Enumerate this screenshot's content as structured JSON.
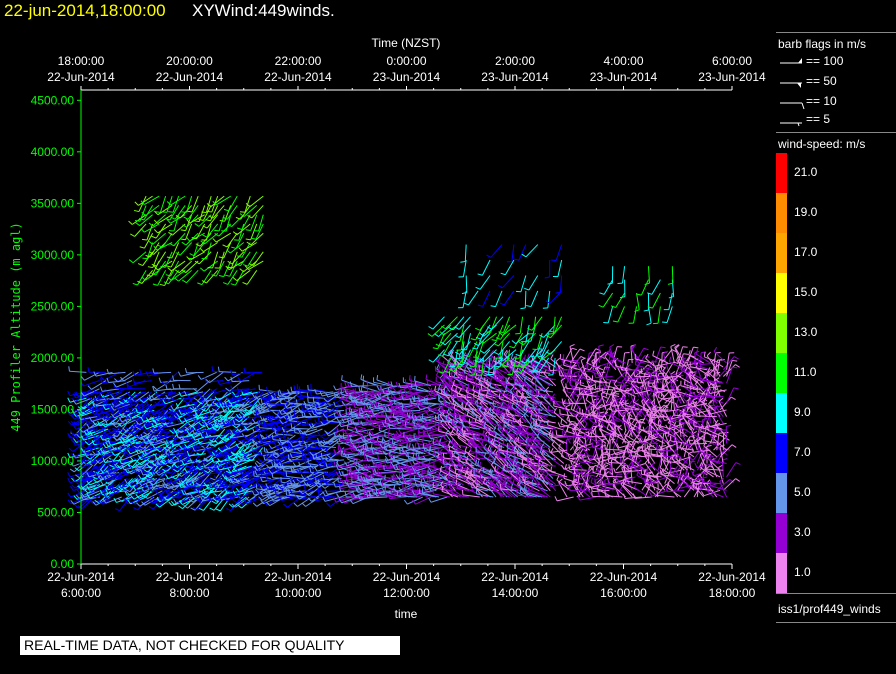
{
  "header": {
    "date_time": "22-jun-2014,18:00:00",
    "plot_name": "XYWind:449winds."
  },
  "colors": {
    "background": "#000000",
    "axis": "#ffffff",
    "y_axis": "#00ff00",
    "date_title": "#ffff00"
  },
  "legend_barbs": {
    "title": "barb flags in m/s",
    "items": [
      {
        "label": "== 100"
      },
      {
        "label": "== 50"
      },
      {
        "label": "== 10"
      },
      {
        "label": "== 5"
      }
    ]
  },
  "legend_speed": {
    "title": "wind-speed: m/s",
    "items": [
      {
        "label": "21.0",
        "color": "#ff0000"
      },
      {
        "label": "19.0",
        "color": "#ff8c00"
      },
      {
        "label": "17.0",
        "color": "#ffa500"
      },
      {
        "label": "15.0",
        "color": "#ffff00"
      },
      {
        "label": "13.0",
        "color": "#7fff00"
      },
      {
        "label": "11.0",
        "color": "#00ff00"
      },
      {
        "label": "9.0",
        "color": "#00ffff"
      },
      {
        "label": "7.0",
        "color": "#0000ff"
      },
      {
        "label": "5.0",
        "color": "#6495ed"
      },
      {
        "label": "3.0",
        "color": "#9400d3"
      },
      {
        "label": "1.0",
        "color": "#ee82ee"
      }
    ]
  },
  "footer": {
    "source": "iss1/prof449_winds",
    "qc_note": "REAL-TIME DATA, NOT CHECKED FOR QUALITY"
  },
  "chart_data": {
    "type": "wind-barb",
    "title": "XYWind:449winds.",
    "xlabel": "time",
    "x2label": "Time (NZST)",
    "ylabel": "449 Profiler Altitude (m agl)",
    "ylim": [
      0,
      4600
    ],
    "yticks": [
      "0.00",
      "500.00",
      "1000.00",
      "1500.00",
      "2000.00",
      "2500.00",
      "3000.00",
      "3500.00",
      "4000.00",
      "4500.00"
    ],
    "xticks_bottom": [
      [
        "22-Jun-2014",
        "6:00:00"
      ],
      [
        "22-Jun-2014",
        "8:00:00"
      ],
      [
        "22-Jun-2014",
        "10:00:00"
      ],
      [
        "22-Jun-2014",
        "12:00:00"
      ],
      [
        "22-Jun-2014",
        "14:00:00"
      ],
      [
        "22-Jun-2014",
        "16:00:00"
      ],
      [
        "22-Jun-2014",
        "18:00:00"
      ]
    ],
    "xticks_top": [
      [
        "18:00:00",
        "22-Jun-2014"
      ],
      [
        "20:00:00",
        "22-Jun-2014"
      ],
      [
        "22:00:00",
        "22-Jun-2014"
      ],
      [
        "0:00:00",
        "23-Jun-2014"
      ],
      [
        "2:00:00",
        "23-Jun-2014"
      ],
      [
        "4:00:00",
        "23-Jun-2014"
      ],
      [
        "6:00:00",
        "23-Jun-2014"
      ]
    ],
    "x_hours_range": [
      6.0,
      18.0
    ],
    "grid": false,
    "legend": "right",
    "segments": [
      {
        "t0": 6.1,
        "t1": 9.4,
        "z0": 650,
        "z1": 1700,
        "dz": 60,
        "dt": 0.05,
        "dir": 240,
        "speed": 7
      },
      {
        "t0": 6.1,
        "t1": 9.4,
        "z0": 1700,
        "z1": 1900,
        "dz": 80,
        "dt": 0.12,
        "dir": 250,
        "speed": 6
      },
      {
        "t0": 9.5,
        "t1": 10.9,
        "z0": 650,
        "z1": 1700,
        "dz": 60,
        "dt": 0.05,
        "dir": 255,
        "speed": 6
      },
      {
        "t0": 11.0,
        "t1": 12.8,
        "z0": 650,
        "z1": 1750,
        "dz": 60,
        "dt": 0.05,
        "dir": 270,
        "speed": 4
      },
      {
        "t0": 12.8,
        "t1": 14.8,
        "z0": 650,
        "z1": 1950,
        "dz": 60,
        "dt": 0.05,
        "dir": 300,
        "speed": 3
      },
      {
        "t0": 14.9,
        "t1": 17.9,
        "z0": 650,
        "z1": 2000,
        "dz": 65,
        "dt": 0.06,
        "dir": 330,
        "speed": 1.5
      },
      {
        "t0": 7.2,
        "t1": 9.4,
        "z0": 2850,
        "z1": 3650,
        "dz": 90,
        "dt": 0.12,
        "dir": 220,
        "speed": 12
      },
      {
        "t0": 12.7,
        "t1": 14.9,
        "z0": 2000,
        "z1": 2450,
        "dz": 80,
        "dt": 0.12,
        "dir": 210,
        "speed": 10
      },
      {
        "t0": 13.1,
        "t1": 14.9,
        "z0": 2650,
        "z1": 3150,
        "dz": 150,
        "dt": 0.22,
        "dir": 200,
        "speed": 8
      },
      {
        "t0": 15.8,
        "t1": 17.0,
        "z0": 2500,
        "z1": 2900,
        "dz": 130,
        "dt": 0.22,
        "dir": 190,
        "speed": 10
      }
    ]
  }
}
